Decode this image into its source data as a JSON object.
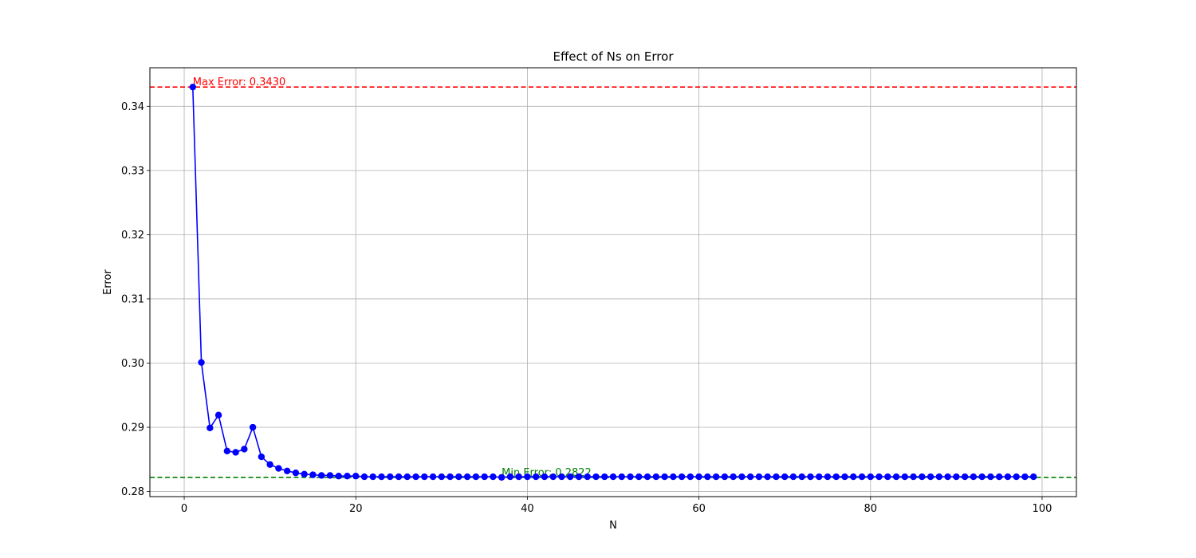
{
  "chart_data": {
    "type": "line",
    "title": "Effect of Ns on Error",
    "xlabel": "N",
    "ylabel": "Error",
    "xlim": [
      -4,
      104
    ],
    "ylim": [
      0.2792,
      0.346
    ],
    "xticks": [
      0,
      20,
      40,
      60,
      80,
      100
    ],
    "yticks": [
      0.28,
      0.29,
      0.3,
      0.31,
      0.32,
      0.33,
      0.34
    ],
    "ytick_labels": [
      "0.28",
      "0.29",
      "0.30",
      "0.31",
      "0.32",
      "0.33",
      "0.34"
    ],
    "grid": true,
    "series": [
      {
        "color": "#0000ff",
        "marker": "circle",
        "x": [
          1,
          2,
          3,
          4,
          5,
          6,
          7,
          8,
          9,
          10,
          11,
          12,
          13,
          14,
          15,
          16,
          17,
          18,
          19,
          20,
          21,
          22,
          23,
          24,
          25,
          26,
          27,
          28,
          29,
          30,
          31,
          32,
          33,
          34,
          35,
          36,
          37,
          38,
          39,
          40,
          41,
          42,
          43,
          44,
          45,
          46,
          47,
          48,
          49,
          50,
          51,
          52,
          53,
          54,
          55,
          56,
          57,
          58,
          59,
          60,
          61,
          62,
          63,
          64,
          65,
          66,
          67,
          68,
          69,
          70,
          71,
          72,
          73,
          74,
          75,
          76,
          77,
          78,
          79,
          80,
          81,
          82,
          83,
          84,
          85,
          86,
          87,
          88,
          89,
          90,
          91,
          92,
          93,
          94,
          95,
          96,
          97,
          98,
          99
        ],
        "y": [
          0.343,
          0.3001,
          0.2899,
          0.2919,
          0.2863,
          0.2861,
          0.2866,
          0.29,
          0.2854,
          0.2842,
          0.2836,
          0.2832,
          0.2829,
          0.2827,
          0.2826,
          0.2825,
          0.2825,
          0.2824,
          0.2824,
          0.2824,
          0.2823,
          0.2823,
          0.2823,
          0.2823,
          0.2823,
          0.2823,
          0.2823,
          0.2823,
          0.2823,
          0.2823,
          0.2823,
          0.2823,
          0.2823,
          0.2823,
          0.2823,
          0.2823,
          0.2822,
          0.2823,
          0.2823,
          0.2823,
          0.2823,
          0.2823,
          0.2823,
          0.2823,
          0.2823,
          0.2823,
          0.2823,
          0.2823,
          0.2823,
          0.2823,
          0.2823,
          0.2823,
          0.2823,
          0.2823,
          0.2823,
          0.2823,
          0.2823,
          0.2823,
          0.2823,
          0.2823,
          0.2823,
          0.2823,
          0.2823,
          0.2823,
          0.2823,
          0.2823,
          0.2823,
          0.2823,
          0.2823,
          0.2823,
          0.2823,
          0.2823,
          0.2823,
          0.2823,
          0.2823,
          0.2823,
          0.2823,
          0.2823,
          0.2823,
          0.2823,
          0.2823,
          0.2823,
          0.2823,
          0.2823,
          0.2823,
          0.2823,
          0.2823,
          0.2823,
          0.2823,
          0.2823,
          0.2823,
          0.2823,
          0.2823,
          0.2823,
          0.2823,
          0.2823,
          0.2823,
          0.2823,
          0.2823
        ]
      }
    ],
    "reference_lines": [
      {
        "orientation": "horizontal",
        "y": 0.343,
        "color": "#ff0000",
        "style": "dashed",
        "label": "Max Error: 0.3430",
        "label_x": 1
      },
      {
        "orientation": "horizontal",
        "y": 0.2822,
        "color": "#008000",
        "style": "dashed",
        "label": "Min Error: 0.2822",
        "label_x": 37
      }
    ]
  }
}
